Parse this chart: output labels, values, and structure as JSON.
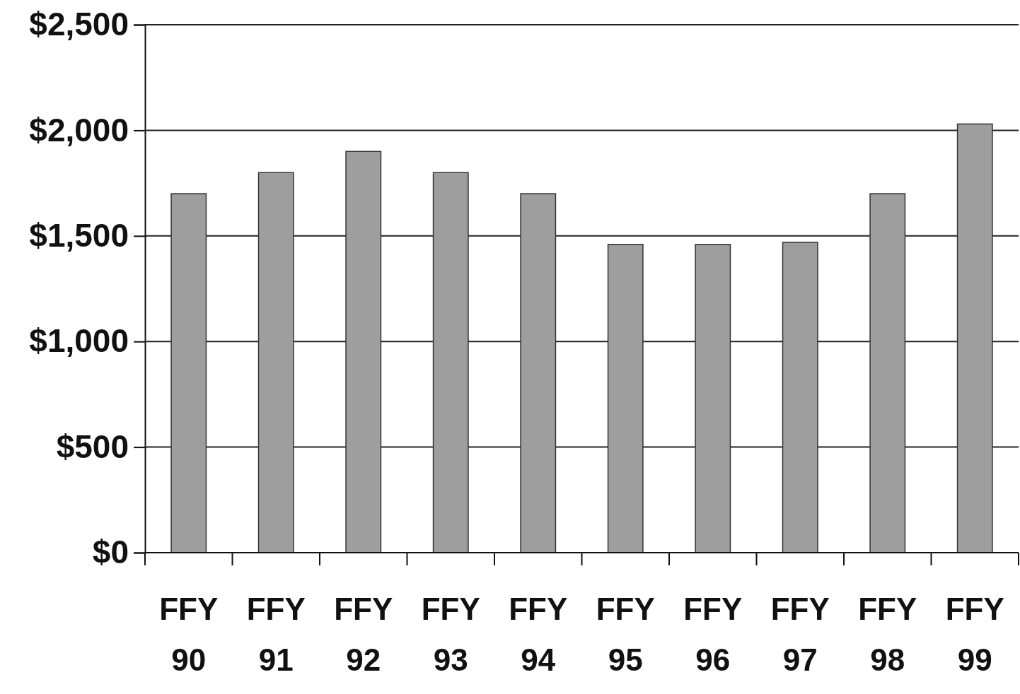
{
  "chart_data": {
    "type": "bar",
    "categories": [
      "FFY 90",
      "FFY 91",
      "FFY 92",
      "FFY 93",
      "FFY 94",
      "FFY 95",
      "FFY 96",
      "FFY 97",
      "FFY 98",
      "FFY 99"
    ],
    "values": [
      1700,
      1800,
      1900,
      1800,
      1700,
      1460,
      1460,
      1470,
      1700,
      2030
    ],
    "color": "#9e9e9e",
    "ylim": [
      0,
      2500
    ],
    "yticks": [
      {
        "value": 0,
        "label": "$0"
      },
      {
        "value": 500,
        "label": "$500"
      },
      {
        "value": 1000,
        "label": "$1,000"
      },
      {
        "value": 1500,
        "label": "$1,500"
      },
      {
        "value": 2000,
        "label": "$2,000"
      },
      {
        "value": 2500,
        "label": "$2,500"
      }
    ],
    "grid": "y"
  }
}
